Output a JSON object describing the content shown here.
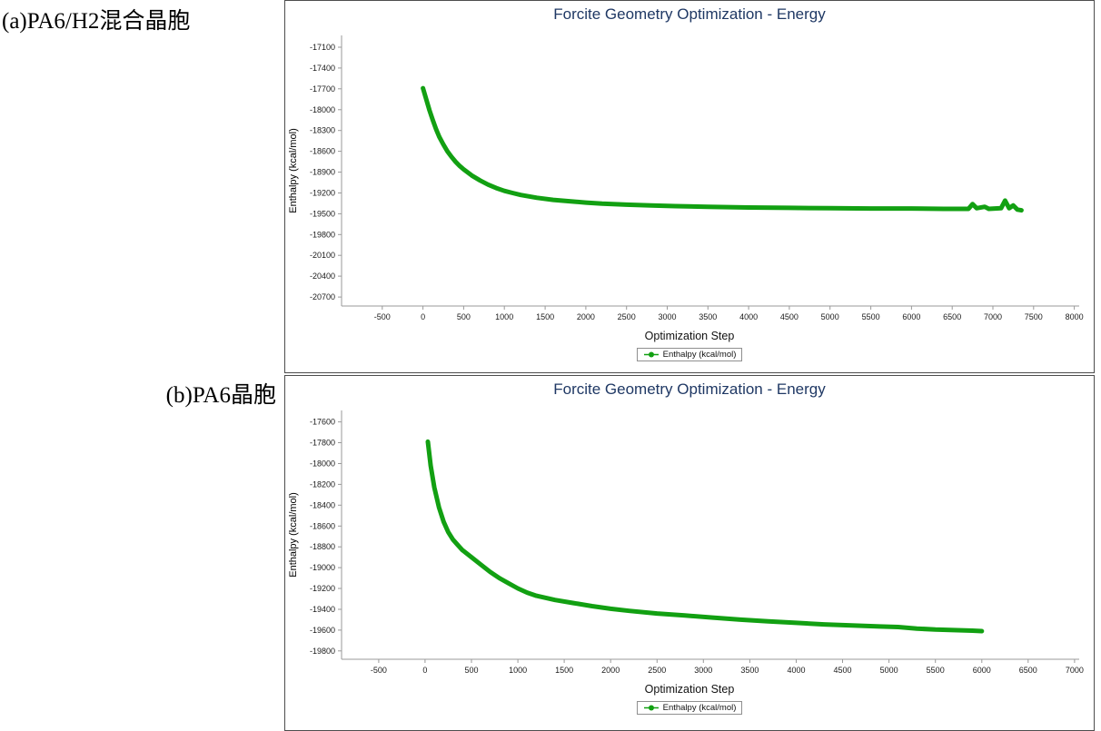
{
  "labels": {
    "a": "(a)PA6/H2混合晶胞",
    "b": "(b)PA6晶胞"
  },
  "chart_data": [
    {
      "type": "line",
      "title": "Forcite Geometry Optimization - Energy",
      "xlabel": "Optimization Step",
      "ylabel": "Enthalpy (kcal/mol)",
      "legend": [
        "Enthalpy (kcal/mol)"
      ],
      "legend_position": "bottom",
      "grid": false,
      "line_color": "#12a012",
      "title_color": "#1f3864",
      "axis_color": "#9a9a9a",
      "xlim": [
        -1000,
        8060
      ],
      "ylim": [
        -20830,
        -16930
      ],
      "xticks": [
        -500,
        0,
        500,
        1000,
        1500,
        2000,
        2500,
        3000,
        3500,
        4000,
        4500,
        5000,
        5500,
        6000,
        6500,
        7000,
        7500,
        8000
      ],
      "yticks": [
        -17100,
        -17400,
        -17700,
        -18000,
        -18300,
        -18600,
        -18900,
        -19200,
        -19500,
        -19800,
        -20100,
        -20400,
        -20700
      ],
      "points": [
        [
          0,
          -17690
        ],
        [
          40,
          -17850
        ],
        [
          80,
          -18010
        ],
        [
          120,
          -18150
        ],
        [
          160,
          -18280
        ],
        [
          200,
          -18390
        ],
        [
          250,
          -18500
        ],
        [
          300,
          -18600
        ],
        [
          350,
          -18680
        ],
        [
          400,
          -18750
        ],
        [
          450,
          -18810
        ],
        [
          500,
          -18860
        ],
        [
          600,
          -18950
        ],
        [
          700,
          -19020
        ],
        [
          800,
          -19080
        ],
        [
          900,
          -19130
        ],
        [
          1000,
          -19170
        ],
        [
          1100,
          -19200
        ],
        [
          1200,
          -19230
        ],
        [
          1400,
          -19270
        ],
        [
          1600,
          -19300
        ],
        [
          1800,
          -19320
        ],
        [
          2000,
          -19340
        ],
        [
          2200,
          -19355
        ],
        [
          2500,
          -19370
        ],
        [
          2800,
          -19380
        ],
        [
          3100,
          -19390
        ],
        [
          3500,
          -19400
        ],
        [
          4000,
          -19410
        ],
        [
          4500,
          -19415
        ],
        [
          5000,
          -19420
        ],
        [
          5500,
          -19425
        ],
        [
          6000,
          -19425
        ],
        [
          6400,
          -19430
        ],
        [
          6700,
          -19430
        ],
        [
          6750,
          -19360
        ],
        [
          6800,
          -19420
        ],
        [
          6900,
          -19400
        ],
        [
          6950,
          -19430
        ],
        [
          7100,
          -19420
        ],
        [
          7150,
          -19310
        ],
        [
          7200,
          -19420
        ],
        [
          7250,
          -19380
        ],
        [
          7300,
          -19440
        ],
        [
          7350,
          -19450
        ]
      ]
    },
    {
      "type": "line",
      "title": "Forcite Geometry Optimization - Energy",
      "xlabel": "Optimization Step",
      "ylabel": "Enthalpy (kcal/mol)",
      "legend": [
        "Enthalpy (kcal/mol)"
      ],
      "legend_position": "bottom",
      "grid": false,
      "line_color": "#12a012",
      "title_color": "#1f3864",
      "axis_color": "#9a9a9a",
      "xlim": [
        -900,
        7050
      ],
      "ylim": [
        -19880,
        -17490
      ],
      "xticks": [
        -500,
        0,
        500,
        1000,
        1500,
        2000,
        2500,
        3000,
        3500,
        4000,
        4500,
        5000,
        5500,
        6000,
        6500,
        7000
      ],
      "yticks": [
        -17600,
        -17800,
        -18000,
        -18200,
        -18400,
        -18600,
        -18800,
        -19000,
        -19200,
        -19400,
        -19600,
        -19800
      ],
      "points": [
        [
          30,
          -17790
        ],
        [
          60,
          -18020
        ],
        [
          100,
          -18230
        ],
        [
          150,
          -18420
        ],
        [
          200,
          -18560
        ],
        [
          250,
          -18660
        ],
        [
          300,
          -18730
        ],
        [
          350,
          -18780
        ],
        [
          400,
          -18830
        ],
        [
          500,
          -18900
        ],
        [
          600,
          -18970
        ],
        [
          700,
          -19040
        ],
        [
          800,
          -19100
        ],
        [
          900,
          -19150
        ],
        [
          1000,
          -19200
        ],
        [
          1100,
          -19240
        ],
        [
          1200,
          -19270
        ],
        [
          1400,
          -19310
        ],
        [
          1600,
          -19340
        ],
        [
          1800,
          -19370
        ],
        [
          2000,
          -19395
        ],
        [
          2200,
          -19415
        ],
        [
          2500,
          -19440
        ],
        [
          2800,
          -19460
        ],
        [
          3100,
          -19480
        ],
        [
          3400,
          -19500
        ],
        [
          3700,
          -19515
        ],
        [
          4000,
          -19530
        ],
        [
          4300,
          -19545
        ],
        [
          4600,
          -19555
        ],
        [
          4900,
          -19565
        ],
        [
          5100,
          -19570
        ],
        [
          5300,
          -19585
        ],
        [
          5500,
          -19595
        ],
        [
          5700,
          -19600
        ],
        [
          5900,
          -19605
        ],
        [
          6000,
          -19610
        ]
      ]
    }
  ]
}
